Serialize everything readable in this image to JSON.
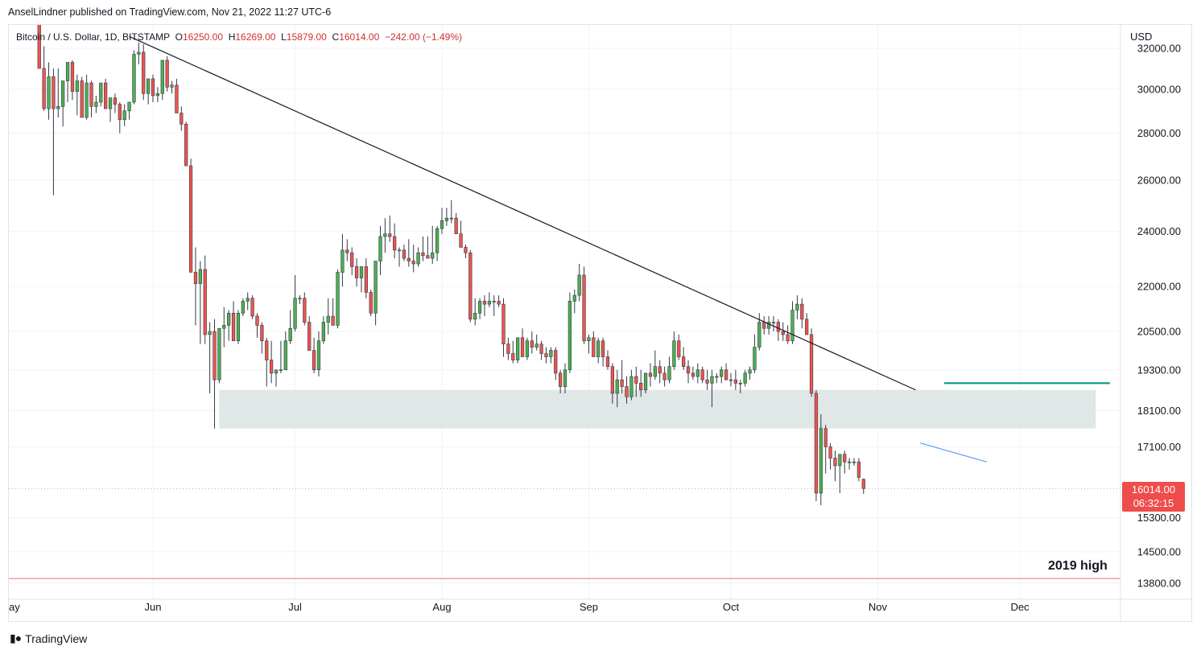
{
  "caption": "AnselLindner published on TradingView.com, Nov 21, 2022 11:27 UTC-6",
  "legend": {
    "symbol": "Bitcoin / U.S. Dollar, 1D, BITSTAMP",
    "open_label": "O",
    "open": "16250.00",
    "high_label": "H",
    "high": "16269.00",
    "low_label": "L",
    "low": "15879.00",
    "close_label": "C",
    "close": "16014.00",
    "change": "−242.00 (−1.49%)"
  },
  "currency": "USD",
  "last_price": "16014.00",
  "countdown": "06:32:15",
  "annotation": "2019 high",
  "footer": {
    "brand": "TradingView",
    "logo_icon": "tradingview-logo-icon"
  },
  "colors": {
    "up": "#4caf50",
    "down": "#ef5350",
    "zone": "#dfe8e6",
    "teal": "#089981",
    "blue": "#5b9cf6",
    "red_line": "#e57373"
  },
  "chart_data": {
    "type": "candlestick",
    "y_axis": {
      "scale": "log",
      "ticks": [
        13800,
        14500,
        15300,
        17100,
        18100,
        19300,
        20500,
        22000,
        24000,
        26000,
        28000,
        30000,
        32000
      ],
      "tick_labels": [
        "13800.00",
        "14500.00",
        "15300.00",
        "17100.00",
        "18100.00",
        "19300.00",
        "20500.00",
        "22000.00",
        "24000.00",
        "26000.00",
        "28000.00",
        "30000.00",
        "32000.00"
      ]
    },
    "x_axis": {
      "labels": [
        "ay",
        "Jun",
        "Jul",
        "Aug",
        "Sep",
        "Oct",
        "Nov",
        "Dec"
      ],
      "label_dates": [
        "2022-05-01",
        "2022-06-01",
        "2022-07-01",
        "2022-08-01",
        "2022-09-01",
        "2022-10-01",
        "2022-11-01",
        "2022-12-01"
      ]
    },
    "start_date": "2022-05-08",
    "candles_ohlc": [
      [
        34100,
        34700,
        31900,
        31000
      ],
      [
        31000,
        32100,
        29000,
        29100
      ],
      [
        29100,
        31300,
        28600,
        30600
      ],
      [
        30600,
        31000,
        25400,
        29100
      ],
      [
        29100,
        31000,
        28700,
        29200
      ],
      [
        29200,
        30300,
        28300,
        30400
      ],
      [
        30400,
        31300,
        29400,
        31300
      ],
      [
        31300,
        31400,
        29500,
        29900
      ],
      [
        29900,
        30700,
        28800,
        30400
      ],
      [
        30400,
        30600,
        28700,
        28700
      ],
      [
        28700,
        30700,
        28600,
        30300
      ],
      [
        30300,
        30400,
        28700,
        29200
      ],
      [
        29200,
        29700,
        28900,
        29400
      ],
      [
        29400,
        30200,
        29200,
        30300
      ],
      [
        30300,
        30500,
        29100,
        29100
      ],
      [
        29100,
        29400,
        28500,
        29600
      ],
      [
        29600,
        29800,
        28900,
        29300
      ],
      [
        29300,
        29400,
        28000,
        28600
      ],
      [
        28600,
        29300,
        28300,
        29000
      ],
      [
        29000,
        29300,
        28600,
        29400
      ],
      [
        29400,
        31900,
        29300,
        31700
      ],
      [
        31700,
        32300,
        31200,
        31800
      ],
      [
        31800,
        32200,
        29500,
        29800
      ],
      [
        29800,
        30500,
        29300,
        30500
      ],
      [
        30500,
        30700,
        29400,
        29700
      ],
      [
        29700,
        30100,
        29400,
        29800
      ],
      [
        29800,
        31300,
        29500,
        31400
      ],
      [
        31400,
        31600,
        29900,
        30100
      ],
      [
        30100,
        30400,
        29800,
        30200
      ],
      [
        30200,
        30500,
        28900,
        28900
      ],
      [
        28900,
        29200,
        28100,
        28400
      ],
      [
        28400,
        28500,
        26600,
        26600
      ],
      [
        26600,
        26900,
        22700,
        22500
      ],
      [
        22500,
        23400,
        20700,
        22100
      ],
      [
        22100,
        22900,
        20100,
        22600
      ],
      [
        22600,
        23100,
        20100,
        20400
      ],
      [
        20400,
        20800,
        18600,
        20500
      ],
      [
        20500,
        20900,
        17600,
        19000
      ],
      [
        19000,
        20400,
        18900,
        20600
      ],
      [
        20600,
        21300,
        20000,
        20700
      ],
      [
        20700,
        21200,
        20200,
        21100
      ],
      [
        21100,
        21500,
        20200,
        20200
      ],
      [
        20200,
        21200,
        20100,
        21100
      ],
      [
        21100,
        21600,
        21000,
        21500
      ],
      [
        21500,
        21800,
        21200,
        21600
      ],
      [
        21600,
        21700,
        20900,
        21000
      ],
      [
        21000,
        21100,
        20300,
        20700
      ],
      [
        20700,
        20800,
        19800,
        20200
      ],
      [
        20200,
        20300,
        18800,
        19600
      ],
      [
        19600,
        20200,
        18900,
        19200
      ],
      [
        19200,
        19300,
        18800,
        19300
      ],
      [
        19300,
        20200,
        19200,
        19300
      ],
      [
        19300,
        20500,
        19300,
        20200
      ],
      [
        20200,
        21200,
        20100,
        20600
      ],
      [
        20600,
        22400,
        20500,
        21600
      ],
      [
        21600,
        21700,
        21400,
        21600
      ],
      [
        21600,
        21800,
        20700,
        20800
      ],
      [
        20800,
        21000,
        19900,
        19900
      ],
      [
        19900,
        20300,
        19200,
        19300
      ],
      [
        19300,
        20500,
        19100,
        20200
      ],
      [
        20200,
        21000,
        20100,
        20800
      ],
      [
        20800,
        21600,
        20400,
        21000
      ],
      [
        21000,
        21600,
        20700,
        20700
      ],
      [
        20700,
        22600,
        20600,
        22500
      ],
      [
        22500,
        23900,
        22000,
        23300
      ],
      [
        23300,
        23700,
        22900,
        23200
      ],
      [
        23200,
        23400,
        22400,
        22700
      ],
      [
        22700,
        23000,
        22000,
        22300
      ],
      [
        22300,
        22600,
        21800,
        22700
      ],
      [
        22700,
        23000,
        21600,
        21800
      ],
      [
        21800,
        21900,
        21000,
        21100
      ],
      [
        21100,
        22900,
        20700,
        22900
      ],
      [
        22900,
        24200,
        22400,
        23800
      ],
      [
        23800,
        24500,
        23200,
        23900
      ],
      [
        23900,
        24600,
        23600,
        23800
      ],
      [
        23800,
        24300,
        23000,
        23300
      ],
      [
        23300,
        23400,
        22700,
        23300
      ],
      [
        23300,
        23500,
        22900,
        23000
      ],
      [
        23000,
        23700,
        22700,
        22900
      ],
      [
        22900,
        23500,
        22500,
        22800
      ],
      [
        22800,
        23400,
        22700,
        23200
      ],
      [
        23200,
        23800,
        22900,
        23100
      ],
      [
        23100,
        23800,
        23000,
        23000
      ],
      [
        23000,
        24200,
        22800,
        23200
      ],
      [
        23200,
        24200,
        22900,
        24100
      ],
      [
        24100,
        24900,
        23900,
        24400
      ],
      [
        24400,
        24900,
        24200,
        24500
      ],
      [
        24500,
        25200,
        24300,
        24500
      ],
      [
        24500,
        24700,
        23900,
        23900
      ],
      [
        23900,
        24400,
        23400,
        23400
      ],
      [
        23400,
        23500,
        23000,
        23200
      ],
      [
        23200,
        23300,
        20800,
        20900
      ],
      [
        20900,
        21600,
        20700,
        21100
      ],
      [
        21100,
        21600,
        20900,
        21500
      ],
      [
        21500,
        21700,
        21000,
        21400
      ],
      [
        21400,
        21800,
        21300,
        21500
      ],
      [
        21500,
        21700,
        21000,
        21500
      ],
      [
        21500,
        21700,
        21300,
        21400
      ],
      [
        21400,
        21600,
        19700,
        20100
      ],
      [
        20100,
        20300,
        19600,
        19800
      ],
      [
        19800,
        20200,
        19500,
        19600
      ],
      [
        19600,
        20300,
        19500,
        20300
      ],
      [
        20300,
        20600,
        19700,
        19700
      ],
      [
        19700,
        20300,
        19600,
        20200
      ],
      [
        20200,
        20500,
        19800,
        20000
      ],
      [
        20000,
        20400,
        19900,
        20100
      ],
      [
        20100,
        20200,
        19600,
        19800
      ],
      [
        19800,
        20000,
        19500,
        19700
      ],
      [
        19700,
        20000,
        19500,
        19900
      ],
      [
        19900,
        20000,
        19000,
        19200
      ],
      [
        19200,
        19300,
        18600,
        18800
      ],
      [
        18800,
        19500,
        18600,
        19300
      ],
      [
        19300,
        21800,
        19200,
        21500
      ],
      [
        21500,
        21900,
        21100,
        21700
      ],
      [
        21700,
        22800,
        21500,
        22400
      ],
      [
        22400,
        22700,
        20100,
        20200
      ],
      [
        20200,
        20400,
        19800,
        20300
      ],
      [
        20300,
        20500,
        19700,
        19700
      ],
      [
        19700,
        20300,
        19500,
        20200
      ],
      [
        20200,
        20300,
        19400,
        19700
      ],
      [
        19700,
        19900,
        19300,
        19400
      ],
      [
        19400,
        19500,
        18300,
        18600
      ],
      [
        18600,
        19300,
        18200,
        19000
      ],
      [
        19000,
        19600,
        18600,
        18800
      ],
      [
        18800,
        19100,
        18300,
        18500
      ],
      [
        18500,
        19300,
        18400,
        19100
      ],
      [
        19100,
        19400,
        18500,
        18900
      ],
      [
        18900,
        19300,
        18500,
        18700
      ],
      [
        18700,
        19200,
        18600,
        19200
      ],
      [
        19200,
        19500,
        18800,
        19100
      ],
      [
        19100,
        19900,
        19000,
        19400
      ],
      [
        19400,
        19600,
        18900,
        19200
      ],
      [
        19200,
        19400,
        18800,
        19000
      ],
      [
        19000,
        19700,
        18900,
        19400
      ],
      [
        19400,
        20500,
        19300,
        20200
      ],
      [
        20200,
        20400,
        19600,
        19700
      ],
      [
        19700,
        20000,
        19300,
        19400
      ],
      [
        19400,
        19600,
        18900,
        19200
      ],
      [
        19200,
        19400,
        19000,
        19100
      ],
      [
        19100,
        19500,
        18900,
        19300
      ],
      [
        19300,
        19400,
        18900,
        19000
      ],
      [
        19000,
        19300,
        18700,
        18900
      ],
      [
        18900,
        19300,
        18200,
        19100
      ],
      [
        19100,
        19200,
        18900,
        19100
      ],
      [
        19100,
        19400,
        18900,
        19300
      ],
      [
        19300,
        19500,
        19000,
        19000
      ],
      [
        19000,
        19200,
        18800,
        19000
      ],
      [
        19000,
        19300,
        18700,
        18900
      ],
      [
        18900,
        19000,
        18600,
        18900
      ],
      [
        18900,
        19300,
        18800,
        19200
      ],
      [
        19200,
        19400,
        19000,
        19300
      ],
      [
        19300,
        20400,
        19200,
        20000
      ],
      [
        20000,
        21100,
        19900,
        20800
      ],
      [
        20800,
        21000,
        20400,
        20600
      ],
      [
        20600,
        21000,
        20400,
        20800
      ],
      [
        20800,
        21000,
        20500,
        20800
      ],
      [
        20800,
        20900,
        20200,
        20500
      ],
      [
        20500,
        20800,
        20200,
        20400
      ],
      [
        20400,
        20700,
        20100,
        20200
      ],
      [
        20200,
        21500,
        20100,
        21200
      ],
      [
        21200,
        21700,
        20900,
        21400
      ],
      [
        21400,
        21600,
        20600,
        20900
      ],
      [
        20900,
        21100,
        20400,
        20400
      ],
      [
        20400,
        20600,
        18500,
        18600
      ],
      [
        18600,
        18700,
        15700,
        15900
      ],
      [
        15900,
        18000,
        15600,
        17600
      ],
      [
        17600,
        17700,
        16400,
        17100
      ],
      [
        17100,
        17200,
        16500,
        16800
      ],
      [
        16800,
        17000,
        16200,
        16600
      ],
      [
        16600,
        16900,
        15900,
        16900
      ],
      [
        16900,
        17000,
        16400,
        16700
      ],
      [
        16700,
        16800,
        16500,
        16700
      ],
      [
        16700,
        16800,
        16600,
        16700
      ],
      [
        16700,
        16800,
        16200,
        16300
      ],
      [
        16250,
        16269,
        15879,
        16014
      ]
    ],
    "lines": [
      {
        "name": "",
        "from": [
          "2022-05-27",
          32600
        ],
        "to": [
          "2022-11-09",
          18700
        ],
        "color": "#131722"
      },
      {
        "name": "",
        "from": [
          "2022-11-10",
          17200
        ],
        "to": [
          "2022-11-24",
          16700
        ],
        "color": "#5b9cf6"
      },
      {
        "name": "",
        "from": [
          "2022-11-15",
          18900
        ],
        "to": [
          "2022-12-20",
          18900
        ],
        "color": "#089981"
      },
      {
        "name": "",
        "from": [
          "2022-04-20",
          13900
        ],
        "to": [
          "2022-12-31",
          13900
        ],
        "color": "#e57373"
      }
    ],
    "zone": {
      "from_date": "2022-06-15",
      "to_date": "2022-12-17",
      "low": 17600,
      "high": 18700
    }
  }
}
